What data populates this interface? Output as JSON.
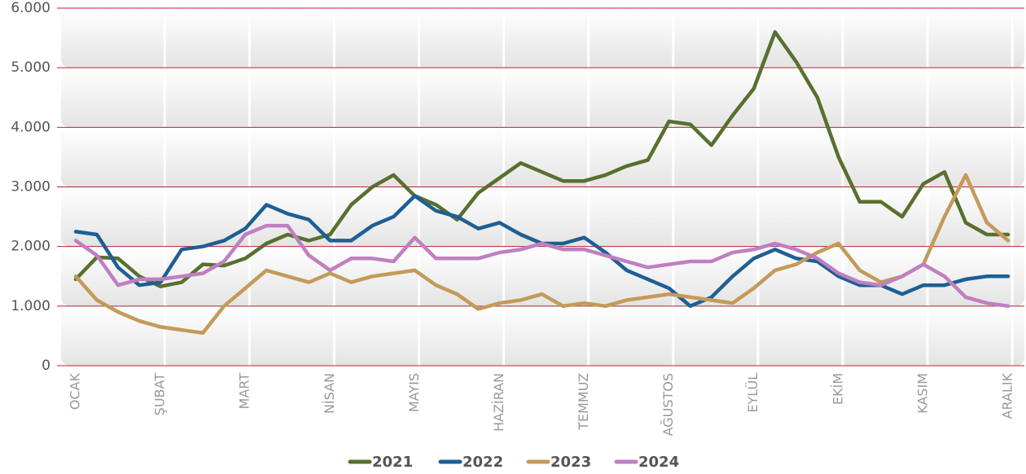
{
  "chart_data": {
    "type": "line",
    "categories": [
      "OCAK",
      null,
      null,
      null,
      "ŞUBAT",
      null,
      null,
      null,
      "MART",
      null,
      null,
      null,
      "NİSAN",
      null,
      null,
      null,
      "MAYIS",
      null,
      null,
      null,
      "HAZİRAN",
      null,
      null,
      null,
      "TEMMUZ",
      null,
      null,
      null,
      "AĞUSTOS",
      null,
      null,
      null,
      "EYLÜL",
      null,
      null,
      null,
      "EKİM",
      null,
      null,
      null,
      "KASIM",
      null,
      null,
      null,
      "ARALIK"
    ],
    "series": [
      {
        "name": "2021",
        "color": "#58702e",
        "values": [
          1450,
          1820,
          1800,
          1500,
          1330,
          1400,
          1700,
          1680,
          1800,
          2050,
          2200,
          2100,
          2200,
          2700,
          3000,
          3200,
          2850,
          2700,
          2450,
          2900,
          3150,
          3400,
          3250,
          3100,
          3100,
          3200,
          3350,
          3450,
          4100,
          4050,
          3700,
          4200,
          4650,
          5600,
          5100,
          4500,
          3500,
          2750,
          2750,
          2500,
          3050,
          3250,
          2400,
          2200,
          2200
        ]
      },
      {
        "name": "2022",
        "color": "#1e5f94",
        "values": [
          2250,
          2200,
          1650,
          1350,
          1400,
          1950,
          2000,
          2100,
          2300,
          2700,
          2550,
          2450,
          2100,
          2100,
          2350,
          2500,
          2850,
          2600,
          2500,
          2300,
          2400,
          2200,
          2050,
          2050,
          2150,
          1900,
          1600,
          1450,
          1300,
          1000,
          1150,
          1500,
          1800,
          1950,
          1800,
          1750,
          1500,
          1350,
          1350,
          1200,
          1350,
          1350,
          1450,
          1500,
          1500
        ]
      },
      {
        "name": "2023",
        "color": "#c49a5a",
        "values": [
          1500,
          1100,
          900,
          750,
          650,
          600,
          550,
          1000,
          1300,
          1600,
          1500,
          1400,
          1550,
          1400,
          1500,
          1550,
          1600,
          1350,
          1200,
          950,
          1050,
          1100,
          1200,
          1000,
          1050,
          1000,
          1100,
          1150,
          1200,
          1150,
          1100,
          1050,
          1300,
          1600,
          1700,
          1900,
          2050,
          1600,
          1400,
          1500,
          1700,
          2500,
          3200,
          2400,
          2100
        ]
      },
      {
        "name": "2024",
        "color": "#c07fc0",
        "values": [
          2100,
          1850,
          1350,
          1450,
          1450,
          1500,
          1550,
          1750,
          2200,
          2350,
          2350,
          1850,
          1600,
          1800,
          1800,
          1750,
          2150,
          1800,
          1800,
          1800,
          1900,
          1950,
          2050,
          1950,
          1950,
          1850,
          1750,
          1650,
          1700,
          1750,
          1750,
          1900,
          1950,
          2050,
          1950,
          1800,
          1550,
          1400,
          1350,
          1500,
          1700,
          1500,
          1150,
          1050,
          1000
        ]
      }
    ],
    "ylim": [
      0,
      6000
    ],
    "yticks": [
      0,
      {
        "value": 1000,
        "label": "1.000"
      },
      {
        "value": 2000,
        "label": "2.000"
      },
      {
        "value": 3000,
        "label": "3.000"
      },
      {
        "value": 4000,
        "label": "4.000"
      },
      {
        "value": 5000,
        "label": "5.000"
      },
      {
        "value": 6000,
        "label": "6.000"
      }
    ],
    "grid": true,
    "legend": "bottom"
  }
}
